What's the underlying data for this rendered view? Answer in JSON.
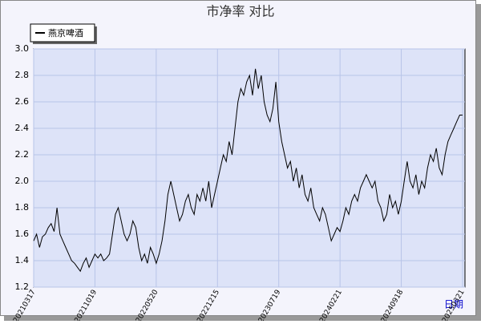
{
  "chart_data": {
    "type": "line",
    "title": "市净率  对比",
    "x_label": "日期",
    "categories": [
      "20210317",
      null,
      null,
      null,
      null,
      null,
      null,
      null,
      null,
      null,
      null,
      null,
      null,
      null,
      null,
      null,
      null,
      null,
      null,
      null,
      null,
      "20211019",
      null,
      null,
      null,
      null,
      null,
      null,
      null,
      null,
      null,
      null,
      null,
      null,
      null,
      null,
      null,
      null,
      null,
      null,
      null,
      null,
      "20220520",
      null,
      null,
      null,
      null,
      null,
      null,
      null,
      null,
      null,
      null,
      null,
      null,
      null,
      null,
      null,
      null,
      null,
      null,
      null,
      null,
      "20221215",
      null,
      null,
      null,
      null,
      null,
      null,
      null,
      null,
      null,
      null,
      null,
      null,
      null,
      null,
      null,
      null,
      null,
      null,
      null,
      null,
      "20230719",
      null,
      null,
      null,
      null,
      null,
      null,
      null,
      null,
      null,
      null,
      null,
      null,
      null,
      null,
      null,
      null,
      null,
      null,
      null,
      null,
      "20240221",
      null,
      null,
      null,
      null,
      null,
      null,
      null,
      null,
      null,
      null,
      null,
      null,
      null,
      null,
      null,
      null,
      null,
      null,
      null,
      null,
      "20240918",
      null,
      null,
      null,
      null,
      null,
      null,
      null,
      null,
      null,
      null,
      null,
      null,
      null,
      null,
      null,
      null,
      null,
      null,
      null,
      null,
      "20250321"
    ],
    "series": [
      {
        "name": "燕京啤酒",
        "color": "#000000",
        "values": [
          1.55,
          1.6,
          1.5,
          1.58,
          1.6,
          1.65,
          1.68,
          1.62,
          1.8,
          1.6,
          1.55,
          1.5,
          1.45,
          1.4,
          1.38,
          1.35,
          1.32,
          1.38,
          1.42,
          1.35,
          1.4,
          1.45,
          1.42,
          1.45,
          1.4,
          1.42,
          1.45,
          1.6,
          1.75,
          1.8,
          1.7,
          1.6,
          1.55,
          1.6,
          1.7,
          1.65,
          1.5,
          1.4,
          1.45,
          1.38,
          1.5,
          1.45,
          1.38,
          1.45,
          1.55,
          1.7,
          1.9,
          2.0,
          1.9,
          1.8,
          1.7,
          1.75,
          1.85,
          1.9,
          1.8,
          1.75,
          1.9,
          1.85,
          1.95,
          1.85,
          2.0,
          1.8,
          1.9,
          2.0,
          2.1,
          2.2,
          2.15,
          2.3,
          2.2,
          2.4,
          2.6,
          2.7,
          2.65,
          2.75,
          2.8,
          2.65,
          2.85,
          2.7,
          2.8,
          2.6,
          2.5,
          2.45,
          2.55,
          2.75,
          2.45,
          2.3,
          2.2,
          2.1,
          2.15,
          2.0,
          2.1,
          1.95,
          2.05,
          1.9,
          1.85,
          1.95,
          1.8,
          1.75,
          1.7,
          1.8,
          1.75,
          1.65,
          1.55,
          1.6,
          1.65,
          1.62,
          1.7,
          1.8,
          1.75,
          1.85,
          1.9,
          1.85,
          1.95,
          2.0,
          2.05,
          2.0,
          1.95,
          2.0,
          1.85,
          1.8,
          1.7,
          1.75,
          1.9,
          1.8,
          1.85,
          1.75,
          1.85,
          2.0,
          2.15,
          2.0,
          1.95,
          2.05,
          1.9,
          2.0,
          1.95,
          2.1,
          2.2,
          2.15,
          2.25,
          2.1,
          2.05,
          2.2,
          2.3,
          2.35,
          2.4,
          2.45,
          2.5,
          2.5
        ]
      }
    ],
    "ylim": [
      1.2,
      3.0
    ],
    "yticks": [
      1.2,
      1.4,
      1.6,
      1.8,
      {
        "value": 2,
        "label": "2.0"
      },
      2.2,
      2.4,
      2.6,
      2.8,
      {
        "value": 3,
        "label": "3.0"
      }
    ],
    "grid": true
  }
}
